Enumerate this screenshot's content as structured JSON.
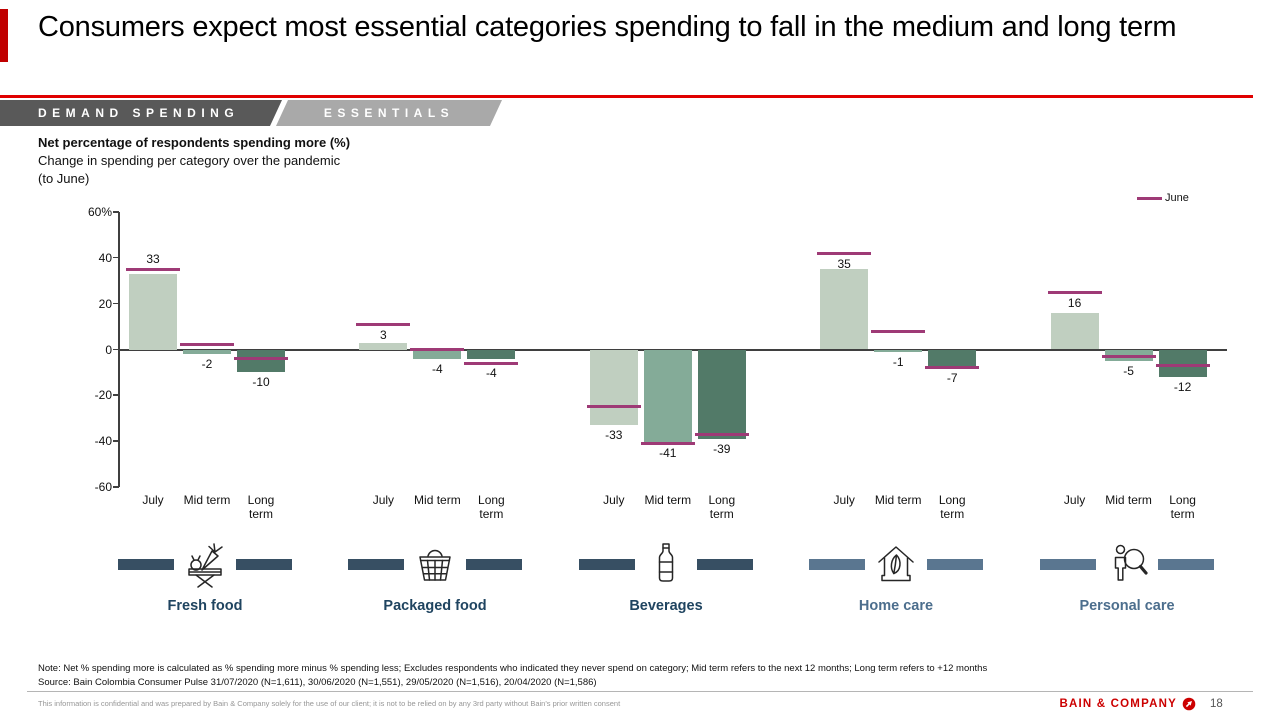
{
  "slide": {
    "title": "Consumers expect most essential categories spending to fall in the medium and long term",
    "tabs": [
      {
        "label": "DEMAND SPENDING"
      },
      {
        "label": "ESSENTIALS"
      }
    ],
    "subtitle_bold": "Net percentage of respondents spending more (%)",
    "subtitle_line2": "Change in spending per category over the pandemic",
    "subtitle_line3": "(to June)",
    "note": "Note: Net % spending more is calculated as % spending more minus % spending less; Excludes respondents who indicated they never spend on category; Mid term refers to the next 12 months; Long term refers to +12 months",
    "source": "Source: Bain Colombia Consumer Pulse 31/07/2020 (N=1,611), 30/06/2020 (N=1,551), 29/05/2020 (N=1,516), 20/04/2020 (N=1,586)",
    "confidential": "This information is confidential and was prepared by Bain & Company solely for the use of our client; it is not to be relied on by any 3rd party without Bain's prior written consent",
    "logo_text": "BAIN & COMPANY",
    "page_number": "18",
    "accent_red": "#cc0000"
  },
  "chart_data": {
    "type": "bar",
    "title": "Net percentage of respondents spending more (%)",
    "subtitle": "Change in spending per category over the pandemic (to June)",
    "ylim": [
      -60,
      60
    ],
    "grid": false,
    "legend_position": "top-right",
    "legend": {
      "label": "June",
      "color": "#9e3a76",
      "style": "line"
    },
    "y_axis": {
      "ticks": [
        "60%",
        "40",
        "20",
        "0",
        "-20",
        "-40",
        "-60"
      ],
      "values": [
        60,
        40,
        20,
        0,
        -20,
        -40,
        -60
      ]
    },
    "series_labels": [
      "July",
      "Mid term",
      "Long\nterm"
    ],
    "bar_colors": [
      "#c0cfc0",
      "#84ab98",
      "#527a68"
    ],
    "june_color": "#9e3a76",
    "groups": [
      {
        "category": "Fresh food",
        "accent": "#374f63",
        "label_color": "#1f4460",
        "values": [
          33,
          -2,
          -10
        ],
        "june": [
          35,
          2,
          -4
        ]
      },
      {
        "category": "Packaged food",
        "accent": "#374f63",
        "label_color": "#1f4460",
        "values": [
          3,
          -4,
          -4
        ],
        "june": [
          11,
          0,
          -6
        ]
      },
      {
        "category": "Beverages",
        "accent": "#374f63",
        "label_color": "#1f4460",
        "values": [
          -33,
          -41,
          -39
        ],
        "june": [
          -25,
          -41,
          -37
        ]
      },
      {
        "category": "Home care",
        "accent": "#5a7690",
        "label_color": "#4c6e8d",
        "values": [
          35,
          -1,
          -7
        ],
        "june": [
          42,
          8,
          -8
        ]
      },
      {
        "category": "Personal care",
        "accent": "#5a7690",
        "label_color": "#4c6e8d",
        "values": [
          16,
          -5,
          -12
        ],
        "june": [
          25,
          -3,
          -7
        ]
      }
    ]
  }
}
